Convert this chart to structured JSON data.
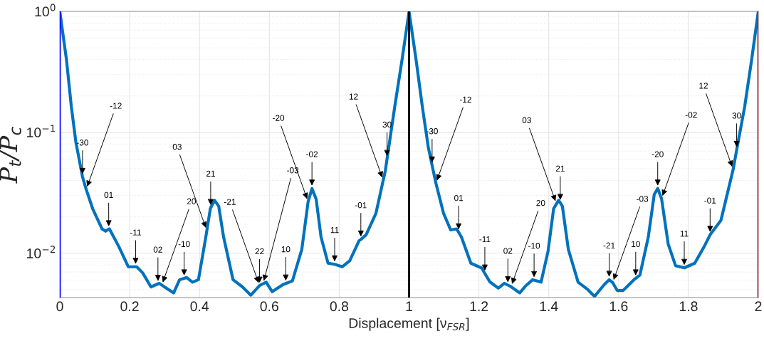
{
  "chart_data": {
    "type": "line",
    "xlabel": "Displacement [ν$_{FSR}$]",
    "ylabel": "P$_{t}$/P$_{c}$",
    "series": [
      {
        "color": "#0072bd",
        "x": [
          0,
          0.019,
          0.033,
          0.046,
          0.065,
          0.0756,
          0.094,
          0.121,
          0.131,
          0.14,
          0.142,
          0.169,
          0.196,
          0.217,
          0.22,
          0.237,
          0.261,
          0.281,
          0.285,
          0.292,
          0.305,
          0.326,
          0.343,
          0.356,
          0.363,
          0.38,
          0.397,
          0.418,
          0.421,
          0.431,
          0.432,
          0.443,
          0.455,
          0.469,
          0.496,
          0.523,
          0.547,
          0.572,
          0.582,
          0.591,
          0.608,
          0.639,
          0.647,
          0.666,
          0.693,
          0.711,
          0.722,
          0.734,
          0.748,
          0.768,
          0.787,
          0.809,
          0.83,
          0.857,
          0.862,
          0.877,
          0.905,
          0.926,
          0.932,
          0.937,
          0.959,
          0.98,
          1.0,
          1.02,
          1.038,
          1.055,
          1.066,
          1.077,
          1.099,
          1.119,
          1.136,
          1.142,
          1.15,
          1.177,
          1.208,
          1.217,
          1.232,
          1.256,
          1.273,
          1.283,
          1.292,
          1.317,
          1.334,
          1.354,
          1.358,
          1.378,
          1.398,
          1.414,
          1.422,
          1.428,
          1.433,
          1.439,
          1.456,
          1.484,
          1.511,
          1.531,
          1.559,
          1.573,
          1.583,
          1.596,
          1.613,
          1.644,
          1.649,
          1.661,
          1.685,
          1.702,
          1.712,
          1.723,
          1.742,
          1.763,
          1.788,
          1.818,
          1.845,
          1.862,
          1.893,
          1.928,
          1.938,
          1.961,
          1.981,
          2.0
        ],
        "values": [
          1,
          0.4,
          0.163,
          0.083,
          0.0428,
          0.0337,
          0.0234,
          0.0159,
          0.0152,
          0.0158,
          0.0159,
          0.01135,
          0.00773,
          0.00773,
          0.00773,
          0.0069,
          0.00527,
          0.00558,
          0.00564,
          0.00546,
          0.00515,
          0.0047,
          0.00604,
          0.0062,
          0.0063,
          0.00577,
          0.00604,
          0.0136,
          0.0154,
          0.0234,
          0.0237,
          0.0274,
          0.0245,
          0.0136,
          0.00604,
          0.00527,
          0.0045,
          0.0054,
          0.0056,
          0.00577,
          0.00481,
          0.00551,
          0.00562,
          0.0059,
          0.0108,
          0.0267,
          0.0343,
          0.028,
          0.0136,
          0.00827,
          0.0081,
          0.00773,
          0.00865,
          0.0127,
          0.013,
          0.0142,
          0.0213,
          0.0401,
          0.0481,
          0.0603,
          0.163,
          0.4,
          1,
          0.4,
          0.163,
          0.0755,
          0.0532,
          0.0379,
          0.0213,
          0.0156,
          0.0159,
          0.0149,
          0.0136,
          0.00827,
          0.00755,
          0.0068,
          0.00577,
          0.00515,
          0.00564,
          0.00545,
          0.00529,
          0.0047,
          0.00538,
          0.00604,
          0.006,
          0.00577,
          0.0104,
          0.0234,
          0.0256,
          0.0274,
          0.0261,
          0.0245,
          0.0108,
          0.00577,
          0.00503,
          0.0044,
          0.00551,
          0.00604,
          0.00572,
          0.00492,
          0.00492,
          0.00604,
          0.0062,
          0.0066,
          0.0136,
          0.0306,
          0.0343,
          0.0283,
          0.0119,
          0.0079,
          0.00757,
          0.00827,
          0.01135,
          0.0142,
          0.0187,
          0.0493,
          0.0715,
          0.163,
          0.4,
          1
        ]
      }
    ],
    "annotations": [
      {
        "text": "-30",
        "x": 0.065,
        "y": 0.0428
      },
      {
        "text": "-12",
        "x": 0.0756,
        "y": 0.0337
      },
      {
        "text": "01",
        "x": 0.14,
        "y": 0.0158
      },
      {
        "text": "-11",
        "x": 0.217,
        "y": 0.00773
      },
      {
        "text": "02",
        "x": 0.281,
        "y": 0.00558
      },
      {
        "text": "20",
        "x": 0.292,
        "y": 0.00546
      },
      {
        "text": "-10",
        "x": 0.356,
        "y": 0.0062
      },
      {
        "text": "21",
        "x": 0.432,
        "y": 0.0237
      },
      {
        "text": "03",
        "x": 0.421,
        "y": 0.0154
      },
      {
        "text": "22",
        "x": 0.572,
        "y": 0.0054
      },
      {
        "text": "-21",
        "x": 0.572,
        "y": 0.0054
      },
      {
        "text": "-03",
        "x": 0.582,
        "y": 0.0056
      },
      {
        "text": "10",
        "x": 0.647,
        "y": 0.00562
      },
      {
        "text": "-02",
        "x": 0.722,
        "y": 0.0343
      },
      {
        "text": "-20",
        "x": 0.711,
        "y": 0.0267
      },
      {
        "text": "11",
        "x": 0.787,
        "y": 0.0081
      },
      {
        "text": "-01",
        "x": 0.862,
        "y": 0.013
      },
      {
        "text": "30",
        "x": 0.937,
        "y": 0.0603
      },
      {
        "text": "12",
        "x": 0.926,
        "y": 0.0401
      },
      {
        "text": "-30",
        "x": 1.066,
        "y": 0.0532
      },
      {
        "text": "-12",
        "x": 1.077,
        "y": 0.0379
      },
      {
        "text": "01",
        "x": 1.142,
        "y": 0.0149
      },
      {
        "text": "-11",
        "x": 1.217,
        "y": 0.0068
      },
      {
        "text": "02",
        "x": 1.283,
        "y": 0.00545
      },
      {
        "text": "20",
        "x": 1.292,
        "y": 0.00529
      },
      {
        "text": "-10",
        "x": 1.358,
        "y": 0.006
      },
      {
        "text": "21",
        "x": 1.433,
        "y": 0.0261
      },
      {
        "text": "03",
        "x": 1.422,
        "y": 0.0256
      },
      {
        "text": "-21",
        "x": 1.573,
        "y": 0.00604
      },
      {
        "text": "-03",
        "x": 1.583,
        "y": 0.00572
      },
      {
        "text": "10",
        "x": 1.649,
        "y": 0.0062
      },
      {
        "text": "-20",
        "x": 1.712,
        "y": 0.0343
      },
      {
        "text": "-02",
        "x": 1.723,
        "y": 0.0283
      },
      {
        "text": "11",
        "x": 1.788,
        "y": 0.00757
      },
      {
        "text": "-01",
        "x": 1.862,
        "y": 0.0142
      },
      {
        "text": "30",
        "x": 1.938,
        "y": 0.0715
      },
      {
        "text": "12",
        "x": 1.928,
        "y": 0.0493
      }
    ],
    "ref_lines": [
      {
        "axis": "x",
        "value": 0,
        "color": "#0000ff"
      },
      {
        "axis": "x",
        "value": 1,
        "color": "#000000"
      },
      {
        "axis": "x",
        "value": 2,
        "color": "#ff0000"
      }
    ],
    "log": "y",
    "xlim": [
      0,
      2
    ],
    "ylim": [
      0.0043,
      1
    ],
    "xticks": [
      0,
      0.2,
      0.4,
      0.6,
      0.8,
      1,
      1.2,
      1.4,
      1.6,
      1.8,
      2
    ],
    "yticks": [
      {
        "value": 0.01,
        "label": "10$^{−2}$"
      },
      {
        "value": 0.1,
        "label": "10$^{−1}$"
      },
      {
        "value": 1,
        "label": "10$^{0}$"
      }
    ],
    "grid": true,
    "legend": false,
    "marker": "none",
    "line_style": "solid"
  }
}
